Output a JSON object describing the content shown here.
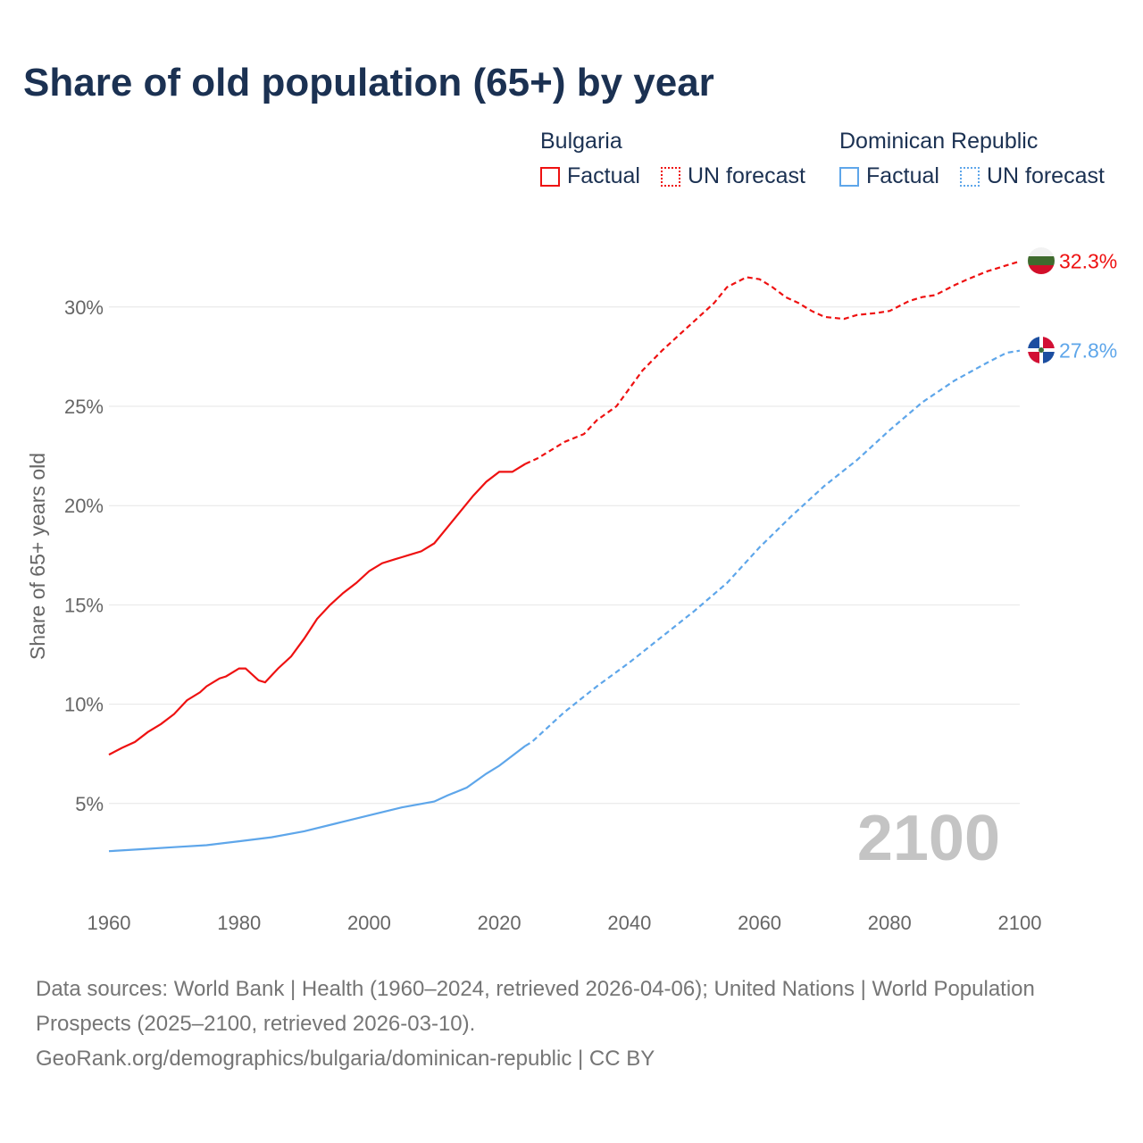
{
  "title": "Share of old population (65+) by year",
  "legend": {
    "groups": [
      {
        "name": "Bulgaria",
        "color": "#ee1111",
        "factual": "Factual",
        "forecast": "UN forecast"
      },
      {
        "name": "Dominican Republic",
        "color": "#5ea6ea",
        "factual": "Factual",
        "forecast": "UN forecast"
      }
    ]
  },
  "year_label": "2100",
  "footer": {
    "sources": "Data sources: World Bank | Health (1960–2024, retrieved 2026-04-06); United Nations | World Population Prospects (2025–2100, retrieved 2026-03-10).",
    "credit": "GeoRank.org/demographics/bulgaria/dominican-republic | CC BY"
  },
  "chart_data": {
    "type": "line",
    "title": "Share of old population (65+) by year",
    "xlabel": "",
    "ylabel": "Share of 65+ years old",
    "xlim": [
      1960,
      2100
    ],
    "ylim": [
      0,
      32.3
    ],
    "xticks": [
      1960,
      1980,
      2000,
      2020,
      2040,
      2060,
      2080,
      2100
    ],
    "yticks": [
      5,
      10,
      15,
      20,
      25,
      30
    ],
    "ytick_labels": [
      "5%",
      "10%",
      "15%",
      "20%",
      "25%",
      "30%"
    ],
    "grid": true,
    "series": [
      {
        "name": "Bulgaria",
        "color": "#ee1111",
        "end_label": "32.3%",
        "factual": {
          "x": [
            1960,
            1962,
            1964,
            1966,
            1968,
            1970,
            1972,
            1974,
            1975,
            1977,
            1978,
            1980,
            1981,
            1983,
            1984,
            1986,
            1988,
            1990,
            1991,
            1992,
            1994,
            1996,
            1998,
            2000,
            2002,
            2004,
            2005,
            2006,
            2008,
            2010,
            2012,
            2014,
            2016,
            2018,
            2020,
            2022,
            2023,
            2024
          ],
          "y": [
            7.46,
            7.8,
            8.1,
            8.6,
            9.0,
            9.5,
            10.2,
            10.6,
            10.9,
            11.3,
            11.4,
            11.8,
            11.8,
            11.2,
            11.1,
            11.8,
            12.4,
            13.3,
            13.8,
            14.3,
            15.0,
            15.6,
            16.1,
            16.7,
            17.1,
            17.3,
            17.4,
            17.5,
            17.7,
            18.1,
            18.9,
            19.7,
            20.5,
            21.2,
            21.7,
            21.7,
            21.9,
            22.1
          ]
        },
        "forecast": {
          "x": [
            2024,
            2026,
            2028,
            2030,
            2033,
            2035,
            2038,
            2040,
            2042,
            2045,
            2048,
            2050,
            2053,
            2055,
            2058,
            2060,
            2062,
            2064,
            2066,
            2068,
            2070,
            2073,
            2075,
            2078,
            2080,
            2083,
            2085,
            2087,
            2090,
            2092,
            2095,
            2098,
            2100
          ],
          "y": [
            22.1,
            22.4,
            22.8,
            23.2,
            23.6,
            24.3,
            25.0,
            25.9,
            26.8,
            27.8,
            28.7,
            29.3,
            30.2,
            31.0,
            31.5,
            31.4,
            31.0,
            30.5,
            30.2,
            29.8,
            29.5,
            29.4,
            29.6,
            29.7,
            29.8,
            30.3,
            30.5,
            30.6,
            31.1,
            31.4,
            31.8,
            32.1,
            32.3
          ]
        }
      },
      {
        "name": "Dominican Republic",
        "color": "#5ea6ea",
        "end_label": "27.8%",
        "factual": {
          "x": [
            1960,
            1965,
            1970,
            1975,
            1980,
            1985,
            1990,
            1995,
            2000,
            2005,
            2010,
            2012,
            2015,
            2018,
            2020,
            2022,
            2024
          ],
          "y": [
            2.6,
            2.7,
            2.8,
            2.9,
            3.1,
            3.3,
            3.6,
            4.0,
            4.4,
            4.8,
            5.1,
            5.4,
            5.8,
            6.5,
            6.9,
            7.4,
            7.9
          ]
        },
        "forecast": {
          "x": [
            2024,
            2025,
            2030,
            2035,
            2040,
            2045,
            2050,
            2055,
            2060,
            2065,
            2070,
            2075,
            2080,
            2085,
            2090,
            2095,
            2098,
            2100
          ],
          "y": [
            7.9,
            8.1,
            9.6,
            10.9,
            12.1,
            13.4,
            14.7,
            16.1,
            17.9,
            19.5,
            21.0,
            22.3,
            23.8,
            25.2,
            26.3,
            27.2,
            27.7,
            27.8
          ]
        }
      }
    ]
  }
}
